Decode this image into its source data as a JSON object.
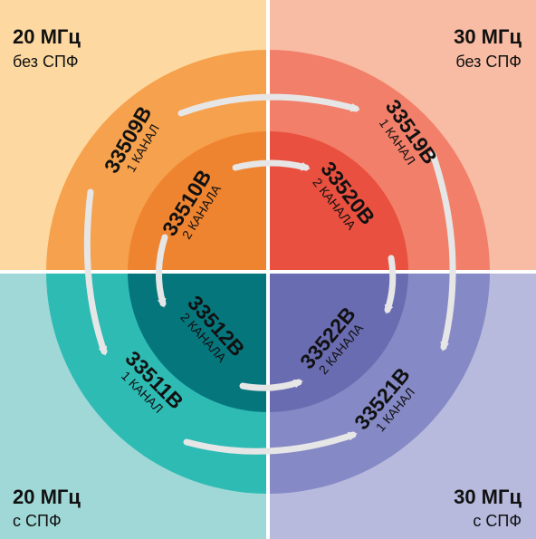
{
  "quadrants": {
    "top_left": {
      "title": "20 МГц",
      "subtitle": "без СПФ",
      "colors": {
        "bg": "#fdd9a1",
        "outer": "#f6a14d",
        "inner": "#ef8430"
      }
    },
    "top_right": {
      "title": "30 МГц",
      "subtitle": "без СПФ",
      "colors": {
        "bg": "#f8bba3",
        "outer": "#f27f69",
        "inner": "#e9503f"
      }
    },
    "bottom_left": {
      "title": "20 МГц",
      "subtitle": "с СПФ",
      "colors": {
        "bg": "#9fd8d6",
        "outer": "#2ebbb4",
        "inner": "#06767d"
      }
    },
    "bottom_right": {
      "title": "30 МГц",
      "subtitle": "с СПФ",
      "colors": {
        "bg": "#b7b9dd",
        "outer": "#8589c5",
        "inner": "#6a6cb1"
      }
    }
  },
  "models": [
    {
      "id": "m33509",
      "model": "33509B",
      "channels": "1 КАНАЛ"
    },
    {
      "id": "m33519",
      "model": "33519B",
      "channels": "1 КАНАЛ"
    },
    {
      "id": "m33510",
      "model": "33510B",
      "channels": "2 КАНАЛА"
    },
    {
      "id": "m33520",
      "model": "33520B",
      "channels": "2 КАНАЛА"
    },
    {
      "id": "m33512",
      "model": "33512B",
      "channels": "2 КАНАЛА"
    },
    {
      "id": "m33522",
      "model": "33522B",
      "channels": "2 КАНАЛА"
    },
    {
      "id": "m33511",
      "model": "33511B",
      "channels": "1 КАНАЛ"
    },
    {
      "id": "m33521",
      "model": "33521B",
      "channels": "1 КАНАЛ"
    }
  ],
  "arrow_color": "#e6e6e6",
  "divider_color": "#ffffff"
}
